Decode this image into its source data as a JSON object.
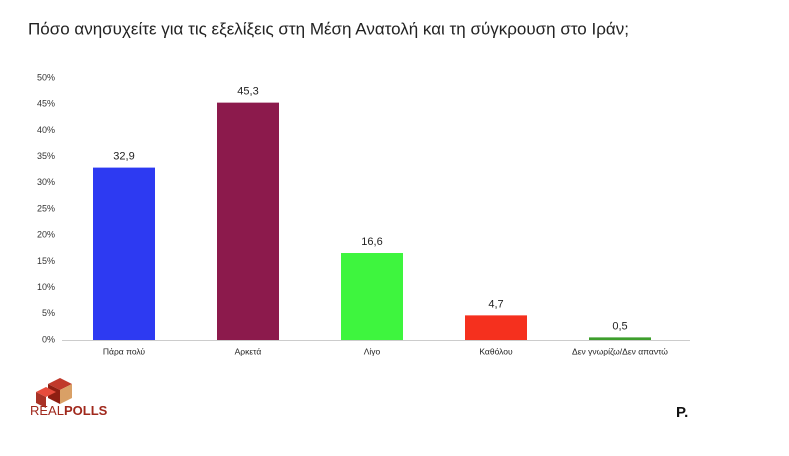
{
  "chart_data": {
    "type": "bar",
    "title": "Πόσο ανησυχείτε για τις εξελίξεις στη Μέση Ανατολή και τη σύγκρουση στο Ιράν;",
    "categories": [
      "Πάρα πολύ",
      "Αρκετά",
      "Λίγο",
      "Καθόλου",
      "Δεν γνωρίζω/Δεν απαντώ"
    ],
    "values": [
      32.9,
      45.3,
      16.6,
      4.7,
      0.5
    ],
    "value_labels": [
      "32,9",
      "45,3",
      "16,6",
      "4,7",
      "0,5"
    ],
    "colors": [
      "#2d3af2",
      "#8c1a4c",
      "#3ef53e",
      "#f5301e",
      "#3d9e2c"
    ],
    "ylim": [
      0,
      50
    ],
    "yticks": [
      {
        "value": 0,
        "label": "0%"
      },
      {
        "value": 5,
        "label": "5%"
      },
      {
        "value": 10,
        "label": "10%"
      },
      {
        "value": 15,
        "label": "15%"
      },
      {
        "value": 20,
        "label": "20%"
      },
      {
        "value": 25,
        "label": "25%"
      },
      {
        "value": 30,
        "label": "30%"
      },
      {
        "value": 35,
        "label": "35%"
      },
      {
        "value": 40,
        "label": "40%"
      },
      {
        "value": 45,
        "label": "45%"
      },
      {
        "value": 50,
        "label": "50%"
      }
    ],
    "grid": false
  },
  "logos": {
    "left_a": "REAL",
    "left_b": "POLLS",
    "right": "P."
  }
}
